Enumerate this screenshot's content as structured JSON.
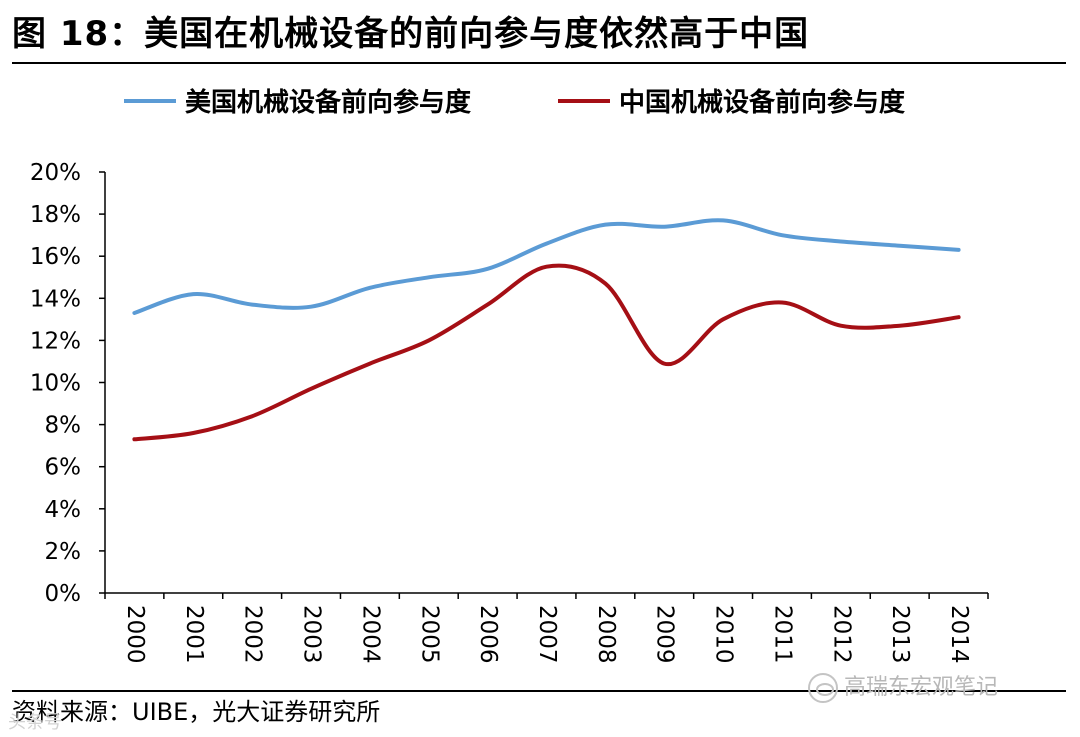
{
  "title": "图 18：美国在机械设备的前向参与度依然高于中国",
  "source": "资料来源：UIBE，光大证券研究所",
  "watermark": "高瑞东宏观笔记",
  "faint_mark": "头条号",
  "chart_data": {
    "type": "line",
    "title": "",
    "xlabel": "",
    "ylabel": "",
    "categories": [
      "2000",
      "2001",
      "2002",
      "2003",
      "2004",
      "2005",
      "2006",
      "2007",
      "2008",
      "2009",
      "2010",
      "2011",
      "2012",
      "2013",
      "2014"
    ],
    "y_tick_labels": [
      "0%",
      "2%",
      "4%",
      "6%",
      "8%",
      "10%",
      "12%",
      "14%",
      "16%",
      "18%",
      "20%"
    ],
    "ylim": [
      0,
      20
    ],
    "grid": false,
    "legend_position": "top",
    "series": [
      {
        "name": "美国机械设备前向参与度",
        "color": "#5b9bd5",
        "values": [
          13.3,
          14.2,
          13.7,
          13.6,
          14.5,
          15.0,
          15.4,
          16.6,
          17.5,
          17.4,
          17.7,
          17.0,
          16.7,
          16.5,
          16.3
        ]
      },
      {
        "name": "中国机械设备前向参与度",
        "color": "#a50f15",
        "values": [
          7.3,
          7.6,
          8.4,
          9.7,
          10.9,
          12.0,
          13.7,
          15.5,
          14.7,
          10.9,
          13.0,
          13.8,
          12.7,
          12.7,
          13.1
        ]
      }
    ]
  }
}
